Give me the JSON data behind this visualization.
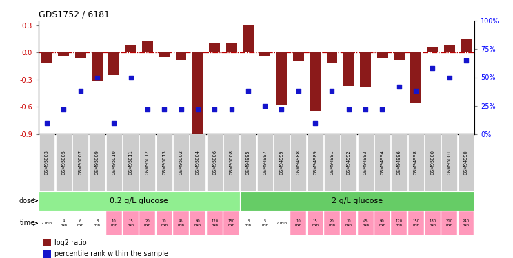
{
  "title": "GDS1752 / 6181",
  "samples": [
    "GSM95003",
    "GSM95005",
    "GSM95007",
    "GSM95009",
    "GSM95010",
    "GSM95011",
    "GSM95012",
    "GSM95013",
    "GSM95002",
    "GSM95004",
    "GSM95006",
    "GSM95008",
    "GSM94995",
    "GSM94997",
    "GSM94999",
    "GSM94988",
    "GSM94989",
    "GSM94991",
    "GSM94992",
    "GSM94993",
    "GSM94994",
    "GSM94996",
    "GSM94998",
    "GSM95000",
    "GSM95001",
    "GSM94990"
  ],
  "log2_ratio": [
    -0.12,
    -0.04,
    -0.06,
    -0.32,
    -0.25,
    0.08,
    0.13,
    -0.05,
    -0.08,
    -0.92,
    0.11,
    0.1,
    0.3,
    -0.04,
    -0.58,
    -0.1,
    -0.65,
    -0.11,
    -0.37,
    -0.38,
    -0.07,
    -0.08,
    -0.55,
    0.06,
    0.08,
    0.15
  ],
  "percentile": [
    10,
    22,
    38,
    50,
    10,
    50,
    22,
    22,
    22,
    22,
    22,
    22,
    38,
    25,
    22,
    38,
    10,
    38,
    22,
    22,
    22,
    42,
    38,
    58,
    50,
    65
  ],
  "bar_color": "#8B1A1A",
  "point_color": "#1414CC",
  "ylim_left": [
    -0.9,
    0.35
  ],
  "ylim_right": [
    0,
    100
  ],
  "yticks_left": [
    0.3,
    0.0,
    -0.3,
    -0.6,
    -0.9
  ],
  "yticks_right": [
    0,
    25,
    50,
    75,
    100
  ],
  "dose1_label": "0.2 g/L glucose",
  "dose2_label": "2 g/L glucose",
  "dose1_n": 12,
  "dose1_color": "#90EE90",
  "dose2_color": "#66CC66",
  "time_labels": [
    "2 min",
    "4\nmin",
    "6\nmin",
    "8\nmin",
    "10\nmin",
    "15\nmin",
    "20\nmin",
    "30\nmin",
    "45\nmin",
    "90\nmin",
    "120\nmin",
    "150\nmin",
    "3\nmin",
    "5\nmin",
    "7 min",
    "10\nmin",
    "15\nmin",
    "20\nmin",
    "30\nmin",
    "45\nmin",
    "90\nmin",
    "120\nmin",
    "150\nmin",
    "180\nmin",
    "210\nmin",
    "240\nmin"
  ],
  "time_color_white": "#FFFFFF",
  "time_color_pink": "#FF99BB",
  "time_white_indices": [
    0,
    1,
    2,
    3,
    12,
    13,
    14
  ],
  "sample_box_color": "#CCCCCC",
  "legend_bar_label": "log2 ratio",
  "legend_pt_label": "percentile rank within the sample"
}
